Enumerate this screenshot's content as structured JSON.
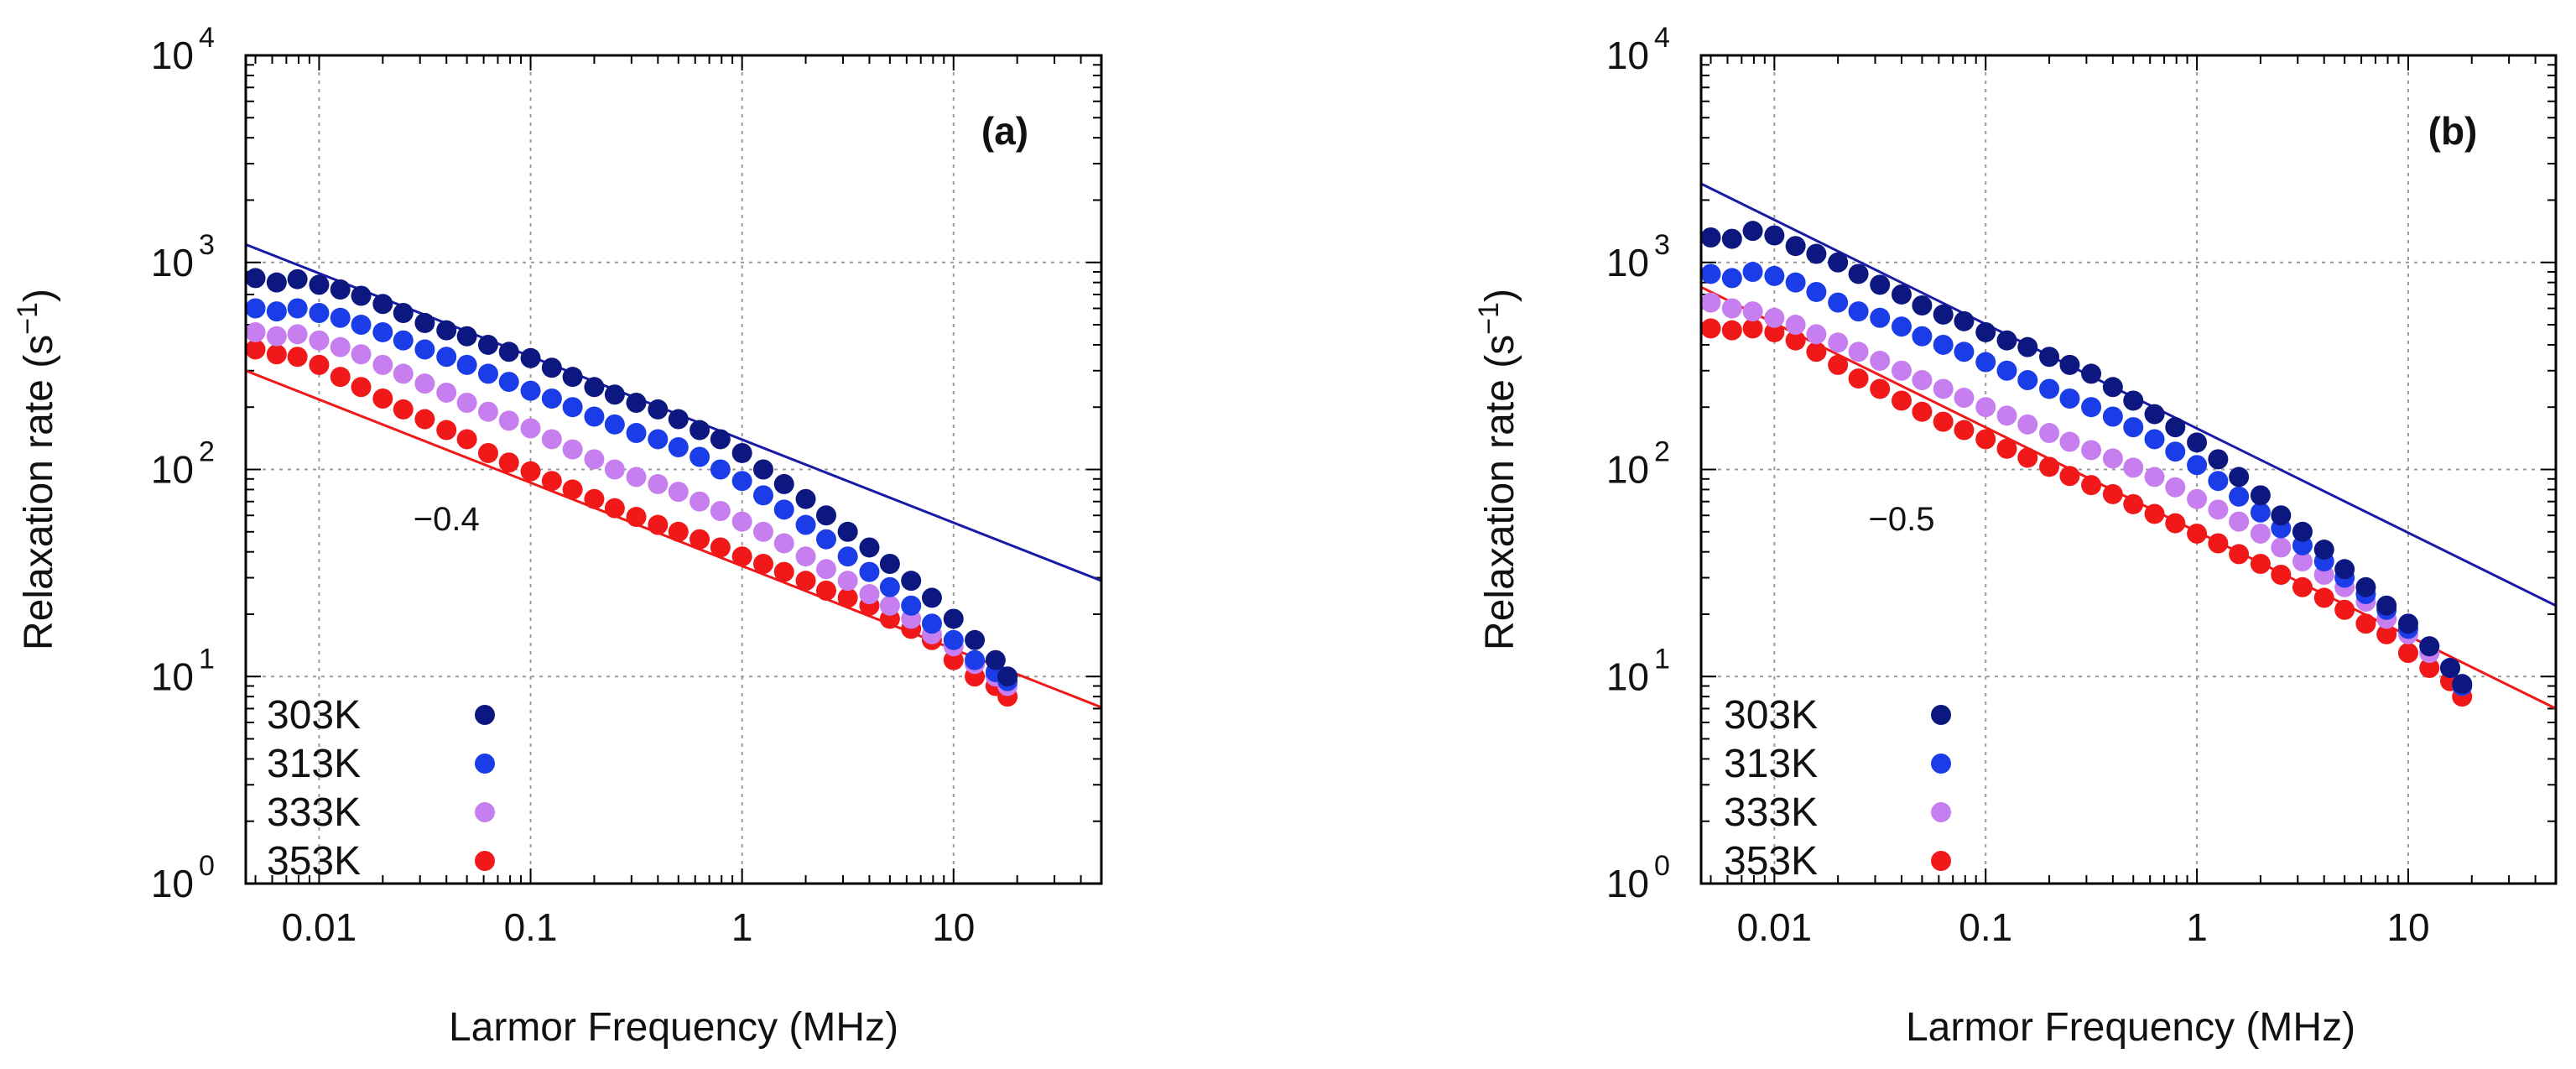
{
  "chart_data": [
    {
      "type": "scatter",
      "panel_label": "(a)",
      "xlabel": "Larmor Frequency (MHz)",
      "ylabel": "Relaxation rate (s",
      "ylabel_unit_exp": "−1",
      "ylabel_close": ")",
      "xscale": "log",
      "yscale": "log",
      "xlim": [
        0.0045,
        50
      ],
      "ylim": [
        1,
        10000
      ],
      "x_ticks": [
        {
          "value": 0.01,
          "label": "0.01"
        },
        {
          "value": 0.1,
          "label": "0.1"
        },
        {
          "value": 1,
          "label": "1"
        },
        {
          "value": 10,
          "label": "10"
        }
      ],
      "y_ticks": [
        {
          "value": 1,
          "base": "10",
          "exp": "0"
        },
        {
          "value": 10,
          "base": "10",
          "exp": "1"
        },
        {
          "value": 100,
          "base": "10",
          "exp": "2"
        },
        {
          "value": 1000,
          "base": "10",
          "exp": "3"
        },
        {
          "value": 10000,
          "base": "10",
          "exp": "4"
        }
      ],
      "grid": true,
      "legend_position": "bottom-left",
      "series": [
        {
          "name": "303K",
          "color": "#0c1880",
          "x": [
            0.005,
            0.0063,
            0.0079,
            0.01,
            0.0126,
            0.0158,
            0.02,
            0.025,
            0.0316,
            0.04,
            0.05,
            0.063,
            0.079,
            0.1,
            0.126,
            0.158,
            0.2,
            0.25,
            0.316,
            0.4,
            0.5,
            0.63,
            0.79,
            1,
            1.26,
            1.58,
            2,
            2.5,
            3.16,
            4,
            5,
            6.3,
            7.9,
            10,
            12.6,
            15.8,
            18
          ],
          "y": [
            840,
            800,
            830,
            780,
            740,
            690,
            630,
            570,
            510,
            470,
            440,
            400,
            370,
            345,
            310,
            280,
            250,
            230,
            210,
            195,
            175,
            155,
            140,
            120,
            100,
            85,
            72,
            60,
            50,
            42,
            35,
            29,
            24,
            19,
            15,
            12,
            10
          ]
        },
        {
          "name": "313K",
          "color": "#1a3de8",
          "x": [
            0.005,
            0.0063,
            0.0079,
            0.01,
            0.0126,
            0.0158,
            0.02,
            0.025,
            0.0316,
            0.04,
            0.05,
            0.063,
            0.079,
            0.1,
            0.126,
            0.158,
            0.2,
            0.25,
            0.316,
            0.4,
            0.5,
            0.63,
            0.79,
            1,
            1.26,
            1.58,
            2,
            2.5,
            3.16,
            4,
            5,
            6.3,
            7.9,
            10,
            12.6,
            15.8,
            18
          ],
          "y": [
            600,
            580,
            600,
            570,
            540,
            500,
            460,
            420,
            380,
            350,
            320,
            290,
            265,
            240,
            220,
            200,
            180,
            165,
            150,
            140,
            128,
            115,
            100,
            88,
            75,
            64,
            54,
            46,
            38,
            32,
            27,
            22,
            18,
            15,
            12,
            10.5,
            9.5
          ]
        },
        {
          "name": "333K",
          "color": "#c77fef",
          "x": [
            0.005,
            0.0063,
            0.0079,
            0.01,
            0.0126,
            0.0158,
            0.02,
            0.025,
            0.0316,
            0.04,
            0.05,
            0.063,
            0.079,
            0.1,
            0.126,
            0.158,
            0.2,
            0.25,
            0.316,
            0.4,
            0.5,
            0.63,
            0.79,
            1,
            1.26,
            1.58,
            2,
            2.5,
            3.16,
            4,
            5,
            6.3,
            7.9,
            10,
            12.6,
            15.8,
            18
          ],
          "y": [
            460,
            440,
            450,
            420,
            390,
            360,
            320,
            290,
            260,
            235,
            210,
            190,
            172,
            158,
            140,
            125,
            112,
            100,
            92,
            85,
            78,
            70,
            63,
            56,
            50,
            44,
            38,
            33,
            29,
            25,
            22,
            19,
            16,
            14,
            11.5,
            10,
            9
          ]
        },
        {
          "name": "353K",
          "color": "#f01818",
          "x": [
            0.005,
            0.0063,
            0.0079,
            0.01,
            0.0126,
            0.0158,
            0.02,
            0.025,
            0.0316,
            0.04,
            0.05,
            0.063,
            0.079,
            0.1,
            0.126,
            0.158,
            0.2,
            0.25,
            0.316,
            0.4,
            0.5,
            0.63,
            0.79,
            1,
            1.26,
            1.58,
            2,
            2.5,
            3.16,
            4,
            5,
            6.3,
            7.9,
            10,
            12.6,
            15.8,
            18
          ],
          "y": [
            380,
            360,
            350,
            320,
            280,
            250,
            220,
            195,
            175,
            155,
            140,
            120,
            108,
            98,
            88,
            80,
            72,
            65,
            59,
            54,
            50,
            46,
            42,
            38,
            35,
            32,
            29,
            26,
            24,
            22,
            19,
            17,
            15,
            12,
            10,
            9,
            8
          ]
        }
      ],
      "fit_lines": [
        {
          "color": "#1a1aa8",
          "x": [
            0.0045,
            50
          ],
          "y": [
            1220,
            29
          ]
        },
        {
          "color": "#f01818",
          "x": [
            0.0045,
            50
          ],
          "y": [
            300,
            7.1
          ]
        }
      ],
      "annotation": {
        "text": "−0.4",
        "x": 0.04,
        "y": 58
      }
    },
    {
      "type": "scatter",
      "panel_label": "(b)",
      "xlabel": "Larmor Frequency (MHz)",
      "ylabel": "Relaxation rate (s",
      "ylabel_unit_exp": "−1",
      "ylabel_close": ")",
      "xscale": "log",
      "yscale": "log",
      "xlim": [
        0.0045,
        50
      ],
      "ylim": [
        1,
        10000
      ],
      "x_ticks": [
        {
          "value": 0.01,
          "label": "0.01"
        },
        {
          "value": 0.1,
          "label": "0.1"
        },
        {
          "value": 1,
          "label": "1"
        },
        {
          "value": 10,
          "label": "10"
        }
      ],
      "y_ticks": [
        {
          "value": 1,
          "base": "10",
          "exp": "0"
        },
        {
          "value": 10,
          "base": "10",
          "exp": "1"
        },
        {
          "value": 100,
          "base": "10",
          "exp": "2"
        },
        {
          "value": 1000,
          "base": "10",
          "exp": "3"
        },
        {
          "value": 10000,
          "base": "10",
          "exp": "4"
        }
      ],
      "grid": true,
      "legend_position": "bottom-left",
      "series": [
        {
          "name": "303K",
          "color": "#0c1880",
          "x": [
            0.005,
            0.0063,
            0.0079,
            0.01,
            0.0126,
            0.0158,
            0.02,
            0.025,
            0.0316,
            0.04,
            0.05,
            0.063,
            0.079,
            0.1,
            0.126,
            0.158,
            0.2,
            0.25,
            0.316,
            0.4,
            0.5,
            0.63,
            0.79,
            1,
            1.26,
            1.58,
            2,
            2.5,
            3.16,
            4,
            5,
            6.3,
            7.9,
            10,
            12.6,
            15.8,
            18
          ],
          "y": [
            1320,
            1300,
            1420,
            1350,
            1200,
            1100,
            1000,
            880,
            780,
            700,
            620,
            560,
            520,
            460,
            420,
            390,
            350,
            320,
            290,
            250,
            215,
            185,
            160,
            135,
            112,
            92,
            75,
            60,
            50,
            41,
            33,
            27,
            22,
            18,
            14,
            11,
            9.2
          ]
        },
        {
          "name": "313K",
          "color": "#1a3de8",
          "x": [
            0.005,
            0.0063,
            0.0079,
            0.01,
            0.0126,
            0.0158,
            0.02,
            0.025,
            0.0316,
            0.04,
            0.05,
            0.063,
            0.079,
            0.1,
            0.126,
            0.158,
            0.2,
            0.25,
            0.316,
            0.4,
            0.5,
            0.63,
            0.79,
            1,
            1.26,
            1.58,
            2,
            2.5,
            3.16,
            4,
            5,
            6.3,
            7.9,
            10,
            12.6,
            15.8,
            18
          ],
          "y": [
            880,
            840,
            900,
            860,
            800,
            720,
            640,
            580,
            540,
            490,
            440,
            400,
            370,
            330,
            300,
            270,
            245,
            220,
            200,
            180,
            160,
            140,
            122,
            105,
            88,
            74,
            62,
            52,
            43,
            36,
            30,
            25,
            21,
            17,
            14,
            11,
            9
          ]
        },
        {
          "name": "333K",
          "color": "#c77fef",
          "x": [
            0.005,
            0.0063,
            0.0079,
            0.01,
            0.0126,
            0.0158,
            0.02,
            0.025,
            0.0316,
            0.04,
            0.05,
            0.063,
            0.079,
            0.1,
            0.126,
            0.158,
            0.2,
            0.25,
            0.316,
            0.4,
            0.5,
            0.63,
            0.79,
            1,
            1.26,
            1.58,
            2,
            2.5,
            3.16,
            4,
            5,
            6.3,
            7.9,
            10,
            12.6,
            15.8,
            18
          ],
          "y": [
            640,
            600,
            580,
            540,
            500,
            450,
            410,
            370,
            335,
            300,
            270,
            245,
            222,
            200,
            182,
            165,
            150,
            136,
            124,
            113,
            102,
            92,
            82,
            72,
            64,
            56,
            49,
            42,
            36,
            31,
            27,
            23,
            19,
            16,
            13,
            11,
            9
          ]
        },
        {
          "name": "353K",
          "color": "#f01818",
          "x": [
            0.005,
            0.0063,
            0.0079,
            0.01,
            0.0126,
            0.0158,
            0.02,
            0.025,
            0.0316,
            0.04,
            0.05,
            0.063,
            0.079,
            0.1,
            0.126,
            0.158,
            0.2,
            0.25,
            0.316,
            0.4,
            0.5,
            0.63,
            0.79,
            1,
            1.26,
            1.58,
            2,
            2.5,
            3.16,
            4,
            5,
            6.3,
            7.9,
            10,
            12.6,
            15.8,
            18
          ],
          "y": [
            480,
            470,
            480,
            460,
            420,
            370,
            320,
            275,
            245,
            215,
            190,
            170,
            155,
            140,
            126,
            114,
            103,
            93,
            84,
            76,
            68,
            61,
            55,
            49,
            44,
            39,
            35,
            31,
            27,
            24,
            21,
            18,
            16,
            13,
            11,
            9.5,
            8
          ]
        }
      ],
      "fit_lines": [
        {
          "color": "#1a1aa8",
          "x": [
            0.0045,
            50
          ],
          "y": [
            2400,
            22
          ]
        },
        {
          "color": "#f01818",
          "x": [
            0.0045,
            50
          ],
          "y": [
            760,
            7.0
          ]
        }
      ],
      "annotation": {
        "text": "−0.5",
        "x": 0.04,
        "y": 58
      }
    }
  ]
}
